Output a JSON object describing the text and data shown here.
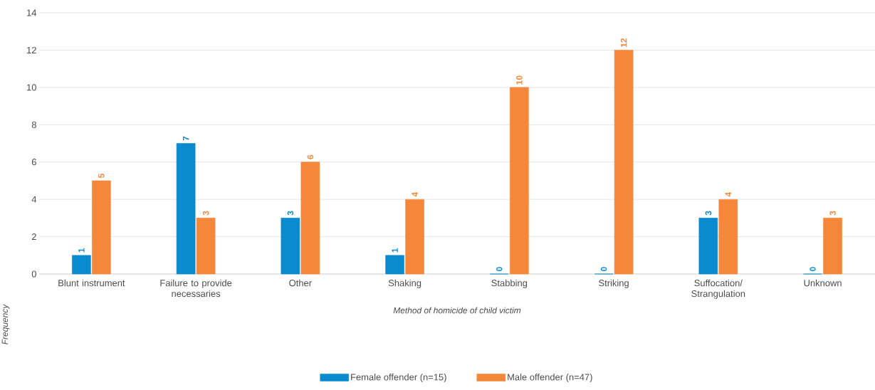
{
  "chart_data": {
    "type": "bar",
    "categories": [
      "Blunt instrument",
      "Failure to provide necessaries",
      "Other",
      "Shaking",
      "Stabbing",
      "Striking",
      "Suffocation/ Strangulation",
      "Unknown"
    ],
    "series": [
      {
        "name": "Female offender (n=15)",
        "color": "#0a8bcf",
        "values": [
          1,
          7,
          3,
          1,
          0,
          0,
          3,
          0
        ]
      },
      {
        "name": "Male offender (n=47)",
        "color": "#f5873a",
        "values": [
          5,
          3,
          6,
          4,
          10,
          12,
          4,
          3
        ]
      }
    ],
    "xlabel": "Method of homicide of child victim",
    "ylabel": "Frequency",
    "ylim": [
      0,
      14
    ],
    "yticks": [
      0,
      2,
      4,
      6,
      8,
      10,
      12,
      14
    ],
    "grid": "y",
    "legend": "bottom",
    "data_labels": true
  }
}
